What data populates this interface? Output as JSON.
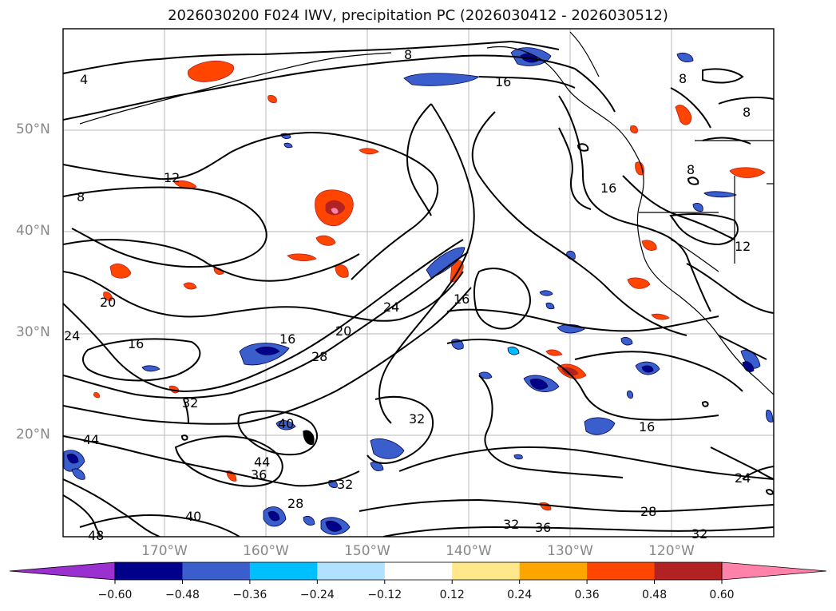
{
  "title": "2026030200 F024 IWV, precipitation PC (2026030412 - 2026030512)",
  "lat_labels": [
    "50°N",
    "40°N",
    "30°N",
    "20°N"
  ],
  "lon_labels": [
    "170°W",
    "160°W",
    "150°W",
    "140°W",
    "130°W",
    "120°W"
  ],
  "colorbar": {
    "ticks": [
      "−0.60",
      "−0.48",
      "−0.36",
      "−0.24",
      "−0.12",
      "0.12",
      "0.24",
      "0.36",
      "0.48",
      "0.60"
    ],
    "colors": [
      "#9b30d0",
      "#00008b",
      "#3a5fcd",
      "#00bfff",
      "#b0e2ff",
      "#ffffff",
      "#ffe88a",
      "#ffa500",
      "#ff4500",
      "#b22222",
      "#ff82ab"
    ]
  },
  "contour_labels": [
    "4",
    "8",
    "8",
    "8",
    "8",
    "8",
    "12",
    "12",
    "16",
    "16",
    "16",
    "16",
    "16",
    "16",
    "20",
    "20",
    "24",
    "24",
    "24",
    "28",
    "28",
    "28",
    "32",
    "32",
    "32",
    "32",
    "32",
    "36",
    "36",
    "40",
    "40",
    "44",
    "44",
    "48"
  ]
}
